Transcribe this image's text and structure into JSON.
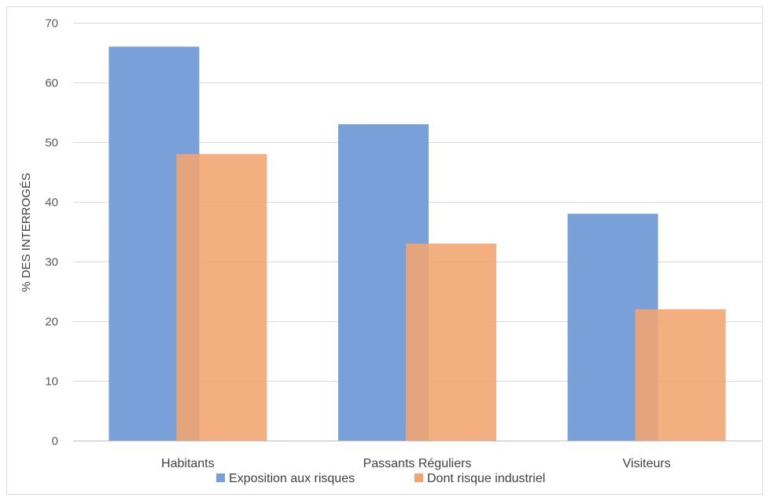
{
  "chart_data": {
    "type": "bar",
    "title": "",
    "xlabel": "",
    "ylabel": "% DES INTERROGÉS",
    "ylim": [
      0,
      70
    ],
    "yticks": [
      0,
      10,
      20,
      30,
      40,
      50,
      60,
      70
    ],
    "grid": true,
    "legend_position": "bottom",
    "categories": [
      "Habitants",
      "Passants Réguliers",
      "Visiteurs"
    ],
    "series": [
      {
        "name": "Exposition aux risques",
        "color": "#7aa0d9",
        "values": [
          66,
          53,
          38
        ]
      },
      {
        "name": "Dont risque industriel",
        "color": "#f2a46f",
        "values": [
          48,
          33,
          22
        ]
      }
    ]
  }
}
